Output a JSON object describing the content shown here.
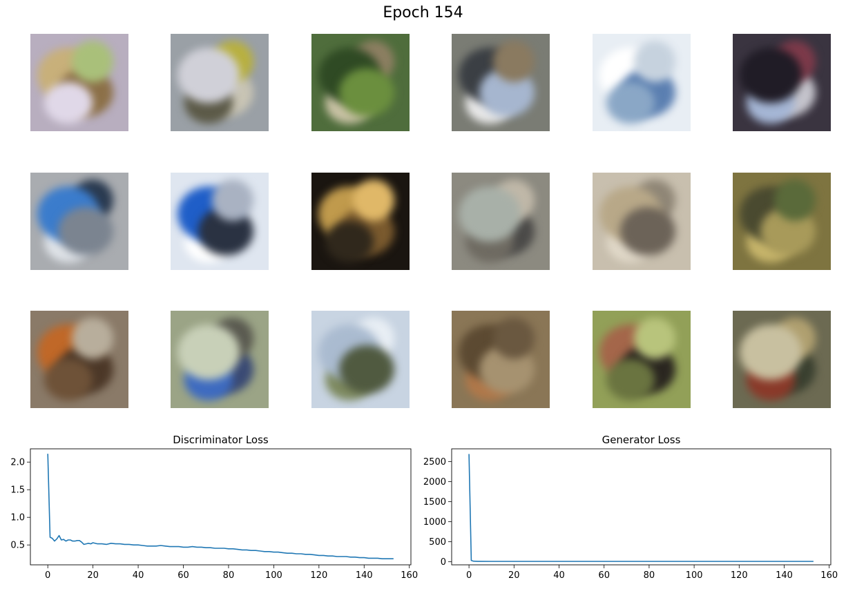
{
  "figure": {
    "title": "Epoch 154",
    "samples": [
      {
        "bg": "#b8aebf",
        "blobs": [
          "#c8b07a",
          "#8c7048",
          "#a9c07a",
          "#e0d8e8"
        ]
      },
      {
        "bg": "#9aa0a6",
        "blobs": [
          "#c8c4b4",
          "#b8b040",
          "#5c5a48",
          "#d0d0d8"
        ]
      },
      {
        "bg": "#4f6d3c",
        "blobs": [
          "#8d7f62",
          "#c9c2a5",
          "#2f4a24",
          "#6b8f3e"
        ]
      },
      {
        "bg": "#7a7c74",
        "blobs": [
          "#e8e8e8",
          "#3b3f44",
          "#a6b6cf",
          "#8a7a60"
        ]
      },
      {
        "bg": "#e8eef4",
        "blobs": [
          "#ffffff",
          "#5b7fb1",
          "#c6d2de",
          "#8aa7c6"
        ]
      },
      {
        "bg": "#3a3440",
        "blobs": [
          "#c5c4cc",
          "#7d3a4a",
          "#a5b6d5",
          "#201c26"
        ]
      },
      {
        "bg": "#a9acb0",
        "blobs": [
          "#2a3a50",
          "#dfe3e8",
          "#3b7ccc",
          "#7b8490"
        ]
      },
      {
        "bg": "#dfe6f0",
        "blobs": [
          "#ffffff",
          "#1f5ec8",
          "#2a3242",
          "#a9b2c2"
        ]
      },
      {
        "bg": "#1a1510",
        "blobs": [
          "#c09a4c",
          "#7a5a2e",
          "#e0b868",
          "#30281c"
        ]
      },
      {
        "bg": "#8c8a80",
        "blobs": [
          "#4b4a48",
          "#c0b8a8",
          "#6f6b62",
          "#a8b0a8"
        ]
      },
      {
        "bg": "#c8bfae",
        "blobs": [
          "#8f8676",
          "#e0d8c8",
          "#b8a888",
          "#6c6358"
        ]
      },
      {
        "bg": "#7e7440",
        "blobs": [
          "#c7b56b",
          "#4a4a30",
          "#a89a5a",
          "#5a6a3a"
        ]
      },
      {
        "bg": "#8a7a68",
        "blobs": [
          "#c06828",
          "#4c3828",
          "#b8ae9c",
          "#6e5238"
        ]
      },
      {
        "bg": "#9ba486",
        "blobs": [
          "#3a4a74",
          "#5a5a50",
          "#3e6bc0",
          "#c8d0b8"
        ]
      },
      {
        "bg": "#c8d4e2",
        "blobs": [
          "#e8eef4",
          "#7e8a60",
          "#aabbd0",
          "#505a40"
        ]
      },
      {
        "bg": "#8a7656",
        "blobs": [
          "#b0784a",
          "#5c4a32",
          "#a69270",
          "#6a5840"
        ]
      },
      {
        "bg": "#92a058",
        "blobs": [
          "#a4664a",
          "#2a2620",
          "#b8c47c",
          "#6a7440"
        ]
      },
      {
        "bg": "#6c6a52",
        "blobs": [
          "#3a4030",
          "#b0a070",
          "#8a3a2a",
          "#c8c0a0"
        ]
      }
    ]
  },
  "chart_data": [
    {
      "type": "line",
      "title": "Discriminator Loss",
      "xlim": [
        -7.7,
        160.7
      ],
      "ylim": [
        0.14,
        2.24
      ],
      "xticks": [
        "0",
        "20",
        "40",
        "60",
        "80",
        "100",
        "120",
        "140",
        "160"
      ],
      "yticks": [
        "0.5",
        "1.0",
        "1.5",
        "2.0"
      ],
      "grid": false,
      "color": "#1f77b4",
      "series": [
        {
          "x": [
            0,
            1,
            2,
            3,
            4,
            5,
            6,
            7,
            8,
            9,
            10,
            11,
            12,
            13,
            14,
            15,
            16,
            17,
            18,
            19,
            20,
            22,
            24,
            26,
            28,
            30,
            32,
            34,
            36,
            38,
            40,
            42,
            44,
            46,
            48,
            50,
            52,
            54,
            56,
            58,
            60,
            62,
            64,
            66,
            68,
            70,
            72,
            74,
            76,
            78,
            80,
            82,
            84,
            86,
            88,
            90,
            92,
            94,
            96,
            98,
            100,
            102,
            104,
            106,
            108,
            110,
            112,
            114,
            116,
            118,
            120,
            122,
            124,
            126,
            128,
            130,
            132,
            134,
            136,
            138,
            140,
            142,
            144,
            146,
            148,
            150,
            153
          ],
          "y": [
            2.15,
            0.64,
            0.62,
            0.57,
            0.61,
            0.67,
            0.59,
            0.6,
            0.57,
            0.59,
            0.59,
            0.57,
            0.57,
            0.58,
            0.58,
            0.55,
            0.51,
            0.52,
            0.53,
            0.52,
            0.54,
            0.52,
            0.52,
            0.51,
            0.53,
            0.52,
            0.52,
            0.51,
            0.51,
            0.5,
            0.5,
            0.49,
            0.48,
            0.48,
            0.48,
            0.49,
            0.48,
            0.47,
            0.47,
            0.47,
            0.46,
            0.46,
            0.47,
            0.46,
            0.46,
            0.45,
            0.45,
            0.44,
            0.44,
            0.44,
            0.43,
            0.43,
            0.42,
            0.41,
            0.41,
            0.4,
            0.4,
            0.39,
            0.38,
            0.38,
            0.37,
            0.37,
            0.36,
            0.35,
            0.35,
            0.34,
            0.34,
            0.33,
            0.33,
            0.32,
            0.31,
            0.31,
            0.3,
            0.3,
            0.29,
            0.29,
            0.29,
            0.28,
            0.28,
            0.27,
            0.27,
            0.26,
            0.26,
            0.26,
            0.25,
            0.25,
            0.25
          ]
        }
      ]
    },
    {
      "type": "line",
      "title": "Generator Loss",
      "xlim": [
        -7.7,
        160.7
      ],
      "ylim": [
        -80,
        2820
      ],
      "xticks": [
        "0",
        "20",
        "40",
        "60",
        "80",
        "100",
        "120",
        "140",
        "160"
      ],
      "yticks": [
        "0",
        "500",
        "1000",
        "1500",
        "2000",
        "2500"
      ],
      "grid": false,
      "color": "#1f77b4",
      "series": [
        {
          "x": [
            0,
            1,
            2,
            3,
            4,
            5,
            10,
            20,
            40,
            60,
            80,
            100,
            120,
            140,
            153
          ],
          "y": [
            2690,
            30,
            12,
            9,
            8,
            8,
            7,
            7,
            6,
            6,
            6,
            6,
            6,
            6,
            6
          ]
        }
      ]
    }
  ]
}
